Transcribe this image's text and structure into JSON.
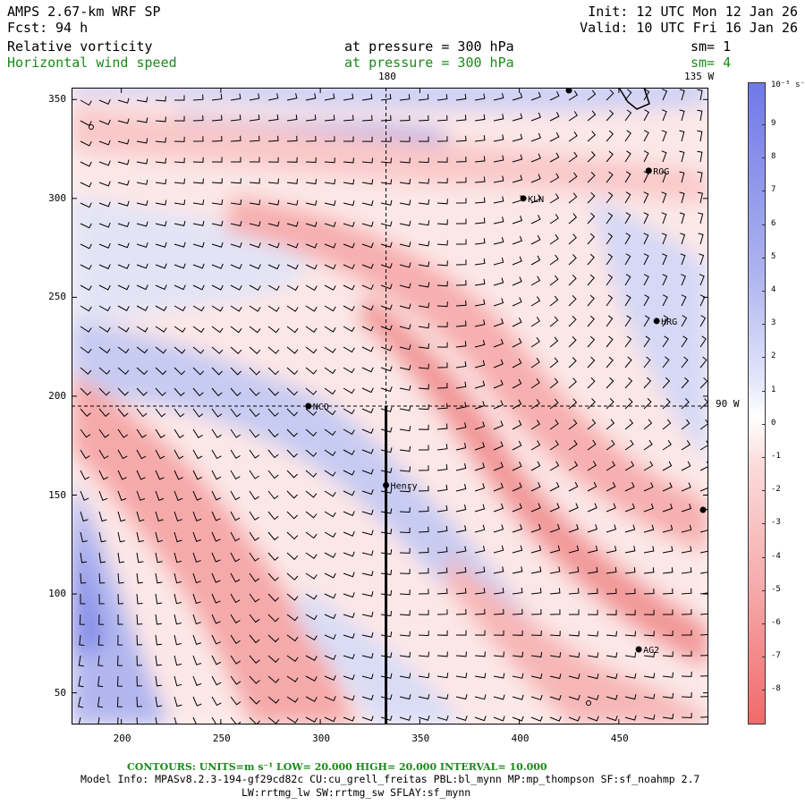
{
  "header": {
    "model": "AMPS 2.67-km WRF SP",
    "fcst_label": "Fcst:",
    "fcst_value": "94 h",
    "init": "Init: 12 UTC Mon 12 Jan 26",
    "valid": "Valid: 10 UTC Fri 16 Jan 26",
    "field1_name": "Relative vorticity",
    "field1_level": "at pressure =  300 hPa",
    "field1_sm": "sm= 1",
    "field2_name": "Horizontal wind speed",
    "field2_level": "at pressure =  300 hPa",
    "field2_sm": "sm= 4"
  },
  "map": {
    "x_ticks": [
      "200",
      "250",
      "300",
      "350",
      "400",
      "450"
    ],
    "y_ticks": [
      "350",
      "300",
      "250",
      "200",
      "150",
      "100",
      "50"
    ],
    "meridian_180": "180",
    "meridian_135w": "135 W",
    "meridian_90w": "90 W",
    "x_range": [
      175,
      495
    ],
    "y_range": [
      34,
      356
    ],
    "cross_x": 333,
    "cross_y": 195,
    "stations": [
      {
        "name": "ROG",
        "x": 465,
        "y": 314
      },
      {
        "name": "KLN",
        "x": 402,
        "y": 300
      },
      {
        "name": "HRG",
        "x": 469,
        "y": 238
      },
      {
        "name": "NCO",
        "x": 294,
        "y": 195
      },
      {
        "name": "Henry",
        "x": 333,
        "y": 155
      },
      {
        "name": "AG2",
        "x": 460,
        "y": 72
      }
    ]
  },
  "colorbar": {
    "units": "10⁻⁵ s⁻¹",
    "labels": [
      "9",
      "8",
      "7",
      "6",
      "5",
      "4",
      "3",
      "2",
      "1",
      "0",
      "-1",
      "-2",
      "-3",
      "-4",
      "-5",
      "-6",
      "-7",
      "-8"
    ],
    "positive_color": "#6f79e6",
    "negative_color": "#f06a6a"
  },
  "footer": {
    "contours": "CONTOURS:  UNITS=m s⁻¹  LOW=  20.000      HIGH=  20.000      INTERVAL=   10.000",
    "model_info": "Model Info: MPASv8.2.3-194-gf29cd82c CU:cu_grell_freitas PBL:bl_mynn MP:mp_thompson SF:sf_noahmp 2.7",
    "model_info2": "LW:rrtmg_lw SW:rrtmg_sw SFLAY:sf_mynn"
  }
}
